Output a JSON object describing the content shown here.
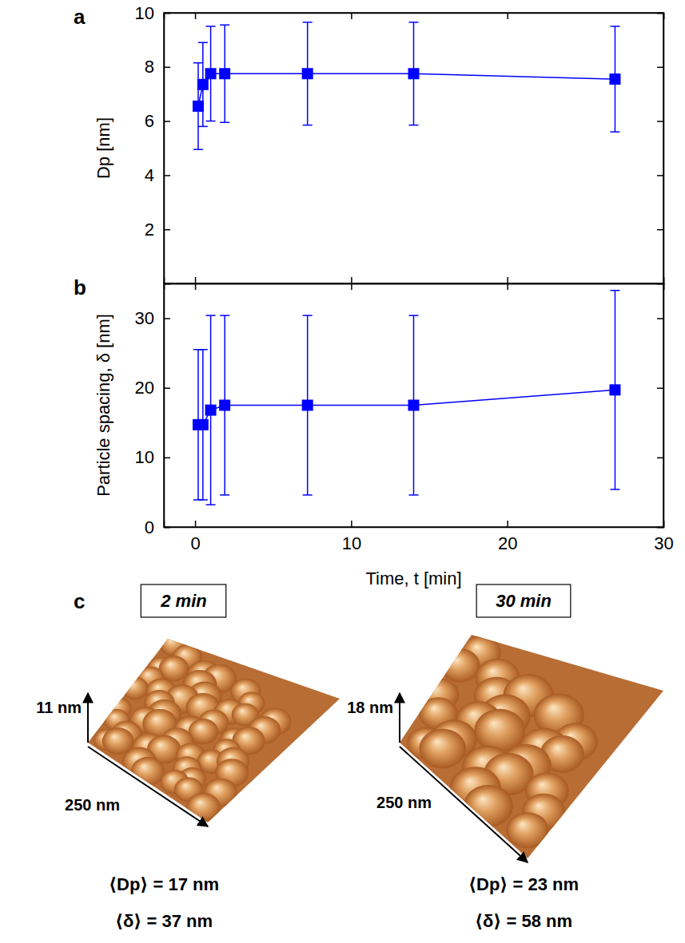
{
  "chart_data": [
    {
      "type": "line",
      "label": "a",
      "y_label": "Dp [nm]",
      "x": [
        0.2,
        0.5,
        1.0,
        1.9,
        7.2,
        14.0,
        26.9
      ],
      "series": [
        {
          "color": "#0000ff",
          "marker": "square",
          "values": [
            6.55,
            7.35,
            7.75,
            7.75,
            7.75,
            7.75,
            7.55
          ],
          "errors": [
            1.6,
            1.55,
            1.75,
            1.8,
            1.9,
            1.9,
            1.95
          ]
        }
      ],
      "xlim": [
        -2,
        30
      ],
      "xticks": [
        0,
        10,
        20,
        30
      ],
      "ylim": [
        0,
        10
      ],
      "yticks": [
        2,
        4,
        6,
        8,
        10
      ],
      "tick_labels": "y"
    },
    {
      "type": "line",
      "label": "b",
      "x_label": "Time, t [min]",
      "y_label": "Particle spacing, δ [nm]",
      "x": [
        0.2,
        0.5,
        1.0,
        1.9,
        7.2,
        14.0,
        26.9
      ],
      "series": [
        {
          "color": "#0000ff",
          "marker": "square",
          "values": [
            14.7,
            14.7,
            16.8,
            17.5,
            17.5,
            17.5,
            19.7
          ],
          "errors": [
            10.8,
            10.8,
            13.6,
            12.9,
            12.9,
            12.9,
            14.3
          ]
        }
      ],
      "xlim": [
        -2,
        30
      ],
      "xticks": [
        0,
        10,
        20,
        30
      ],
      "ylim": [
        0,
        35
      ],
      "yticks": [
        0,
        10,
        20,
        30
      ]
    }
  ],
  "images": {
    "label": "c",
    "panels": [
      {
        "title": "2 min",
        "height": "11 nm",
        "width": "250 nm",
        "stats": [
          "⟨Dp⟩ = 17 nm",
          "⟨δ⟩ = 37 nm"
        ]
      },
      {
        "title": "30 min",
        "height": "18 nm",
        "width": "250 nm",
        "stats": [
          "⟨Dp⟩ = 23 nm",
          "⟨δ⟩ = 58 nm"
        ]
      }
    ]
  }
}
